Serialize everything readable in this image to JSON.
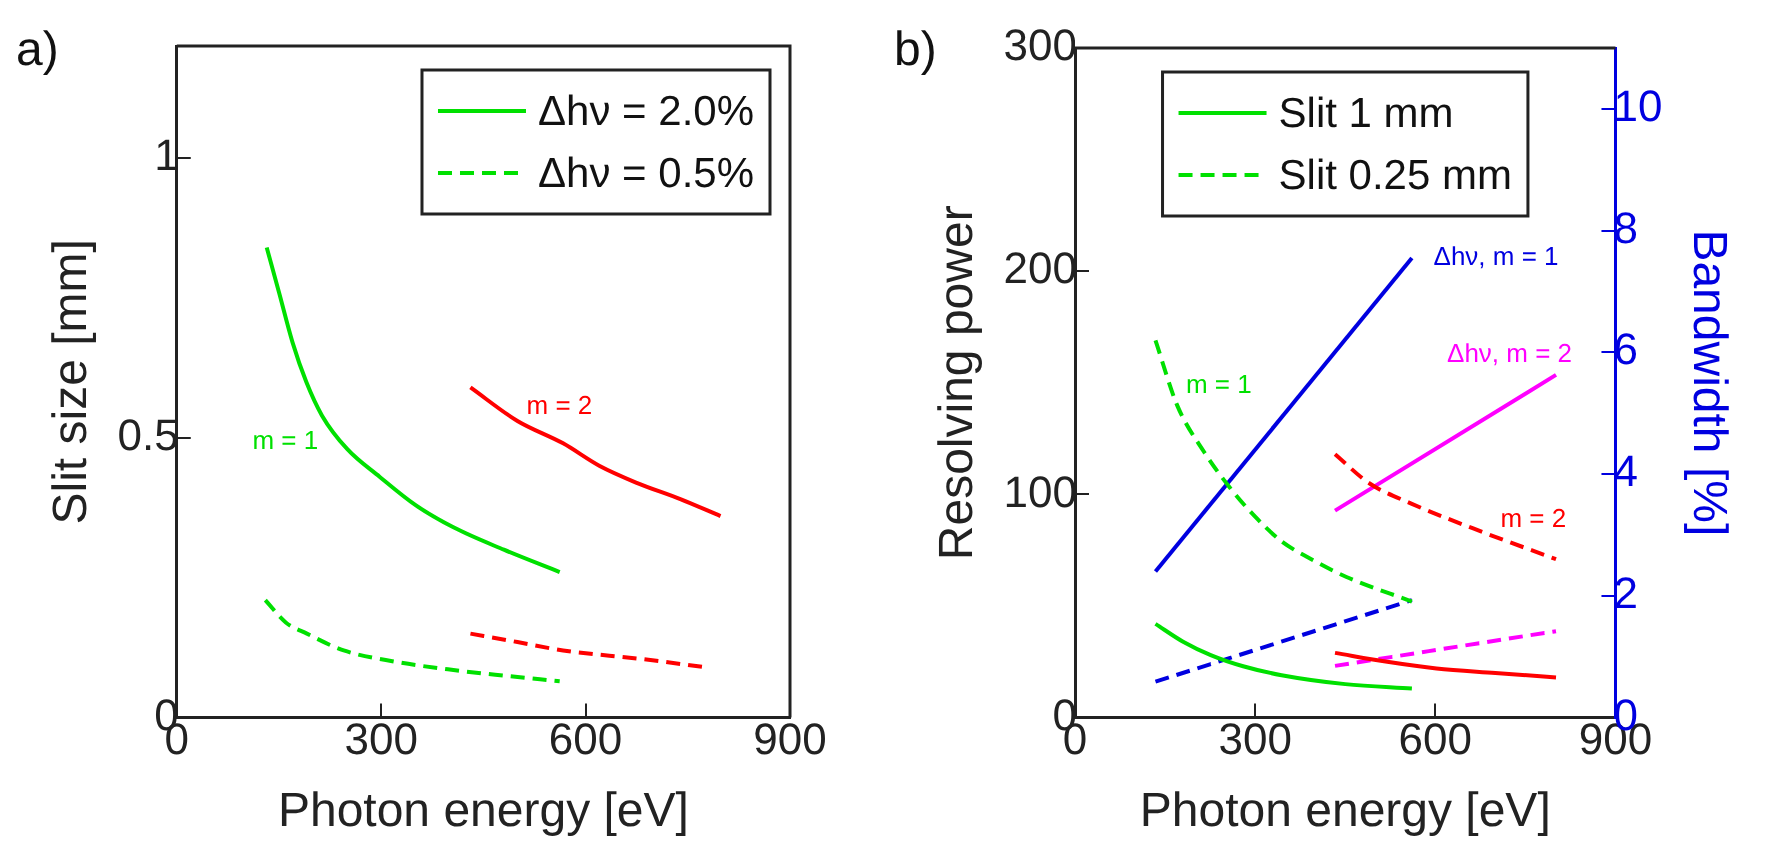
{
  "chart_data": [
    {
      "type": "line",
      "title": "a)",
      "xlabel": "Photon energy [eV]",
      "ylabel": "Slit size [mm]",
      "xlim": [
        0,
        900
      ],
      "xticks": [
        0,
        300,
        600,
        900
      ],
      "ylim": [
        0,
        1.2
      ],
      "yticks": [
        0,
        0.5,
        1
      ],
      "legend": "top right",
      "series": [
        {
          "name": "Δhν = 2.0%",
          "color": "#00e000",
          "line_style": "solid",
          "x": [
            132,
            150,
            170,
            190,
            213,
            250,
            298,
            350,
            406,
            480,
            562
          ],
          "values": [
            0.84,
            0.76,
            0.67,
            0.6,
            0.54,
            0.48,
            0.43,
            0.38,
            0.34,
            0.3,
            0.26
          ]
        },
        {
          "name": "Δhν = 0.5%",
          "color": "#00e000",
          "line_style": "dashed",
          "x": [
            130,
            160,
            191,
            245,
            320,
            406,
            480,
            562
          ],
          "values": [
            0.21,
            0.17,
            0.15,
            0.12,
            0.1,
            0.085,
            0.075,
            0.065
          ]
        },
        {
          "color": "#ff0000",
          "line_style": "solid",
          "x": [
            431,
            500,
            567,
            620,
            674,
            740,
            798
          ],
          "values": [
            0.59,
            0.53,
            0.49,
            0.45,
            0.42,
            0.39,
            0.36
          ]
        },
        {
          "color": "#ff0000",
          "line_style": "dashed",
          "x": [
            431,
            500,
            567,
            680,
            776
          ],
          "values": [
            0.15,
            0.135,
            0.12,
            0.105,
            0.09
          ]
        }
      ],
      "annotations": [
        "m = 1",
        "m = 2"
      ]
    },
    {
      "type": "line",
      "title": "b)",
      "xlabel": "Photon energy [eV]",
      "ylabel": "Resolving power",
      "y2label": "Bandwidth [%]",
      "xlim": [
        0,
        900
      ],
      "xticks": [
        0,
        300,
        600,
        900
      ],
      "ylim": [
        0,
        300
      ],
      "yticks": [
        0,
        100,
        200,
        300
      ],
      "y2lim": [
        0,
        11
      ],
      "y2ticks": [
        0,
        2,
        4,
        6,
        8,
        10
      ],
      "legend": "top",
      "series": [
        {
          "name": "Slit 1 mm",
          "color": "#00e000",
          "line_style": "solid",
          "x": [
            134,
            180,
            226,
            280,
            344,
            450,
            561
          ],
          "values": [
            42,
            34,
            28,
            23,
            19,
            15,
            13
          ]
        },
        {
          "name": "Slit 0.25 mm",
          "color": "#00e000",
          "line_style": "dashed",
          "x": [
            134,
            170,
            215,
            258,
            300,
            344,
            400,
            452,
            561
          ],
          "values": [
            169,
            140,
            119,
            103,
            90,
            79,
            70,
            63,
            52
          ]
        },
        {
          "color": "#ff0000",
          "line_style": "solid",
          "x": [
            433,
            520,
            602,
            700,
            801
          ],
          "values": [
            29,
            25,
            22,
            20,
            18
          ]
        },
        {
          "color": "#ff0000",
          "line_style": "dashed",
          "x": [
            433,
            490,
            559,
            680,
            801
          ],
          "values": [
            118,
            105,
            96,
            83,
            71
          ]
        },
        {
          "color": "#0000e0",
          "line_style": "solid",
          "axis": "y2",
          "x": [
            134,
            561
          ],
          "values": [
            2.4,
            7.55
          ]
        },
        {
          "color": "#0000e0",
          "line_style": "dashed",
          "axis": "y2",
          "x": [
            134,
            561
          ],
          "values": [
            0.59,
            1.93
          ]
        },
        {
          "color": "#ff00ff",
          "line_style": "solid",
          "axis": "y2",
          "x": [
            433,
            801
          ],
          "values": [
            3.4,
            5.63
          ]
        },
        {
          "color": "#ff00ff",
          "line_style": "dashed",
          "axis": "y2",
          "x": [
            433,
            801
          ],
          "values": [
            0.85,
            1.42
          ]
        }
      ],
      "annotations": [
        "Δhν, m = 1",
        "Δhν, m = 2",
        "m = 1",
        "m = 2"
      ]
    }
  ]
}
